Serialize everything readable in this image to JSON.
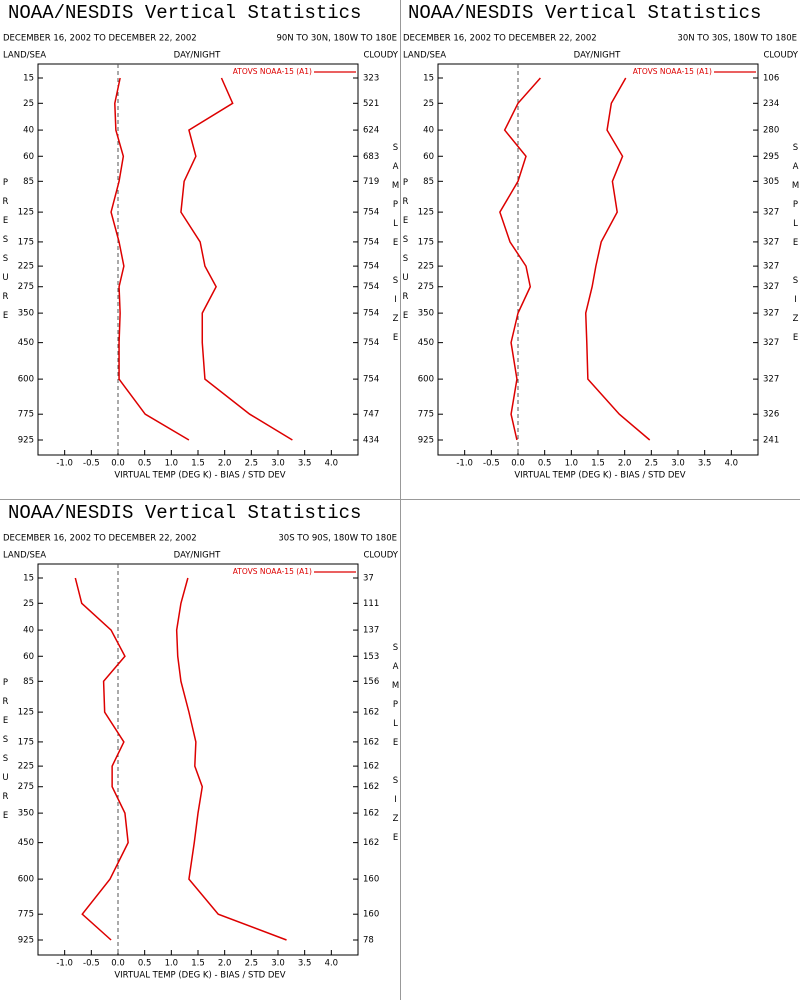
{
  "chart_data": [
    {
      "type": "line",
      "title": "NOAA/NESDIS Vertical Statistics",
      "subtitle": "DECEMBER 16, 2002 TO DECEMBER 22, 2002",
      "region": "90N TO 30N, 180W TO 180E",
      "land_sea": "LAND/SEA",
      "day_night": "DAY/NIGHT",
      "cloudy": "CLOUDY",
      "ylabel": "PRESSURE",
      "y2label": "SAMPLE SIZE",
      "xlabel": "VIRTUAL TEMP (DEG K) - BIAS / STD DEV",
      "levels": [
        15,
        25,
        40,
        60,
        85,
        125,
        175,
        225,
        275,
        350,
        450,
        600,
        775,
        925
      ],
      "sample_size": [
        323,
        521,
        624,
        683,
        719,
        754,
        754,
        754,
        754,
        754,
        754,
        754,
        747,
        434
      ],
      "series": [
        {
          "name": "ATOVS NOAA-15 (A1)",
          "color": "#dd0000",
          "bias": [
            0.04,
            -0.06,
            -0.04,
            0.1,
            0.02,
            -0.13,
            0.02,
            0.11,
            0.02,
            0.04,
            0.02,
            0.02,
            0.51,
            1.33
          ],
          "std_dev": [
            1.94,
            2.15,
            1.33,
            1.46,
            1.24,
            1.18,
            1.54,
            1.63,
            1.84,
            1.58,
            1.58,
            1.63,
            2.47,
            3.27
          ]
        }
      ],
      "xlim": [
        -1.5,
        4.5
      ],
      "xticks": [
        {
          "value": -1,
          "label": "-1.0"
        },
        -0.5,
        {
          "value": 0,
          "label": "0.0"
        },
        0.5,
        {
          "value": 1,
          "label": "1.0"
        },
        1.5,
        {
          "value": 2,
          "label": "2.0"
        },
        2.5,
        {
          "value": 3,
          "label": "3.0"
        },
        3.5,
        {
          "value": 4,
          "label": "4.0"
        }
      ]
    },
    {
      "type": "line",
      "title": "NOAA/NESDIS Vertical Statistics",
      "subtitle": "DECEMBER 16, 2002 TO DECEMBER 22, 2002",
      "region": "30N TO 30S, 180W TO 180E",
      "land_sea": "LAND/SEA",
      "day_night": "DAY/NIGHT",
      "cloudy": "CLOUDY",
      "ylabel": "PRESSURE",
      "y2label": "SAMPLE SIZE",
      "xlabel": "VIRTUAL TEMP (DEG K) - BIAS / STD DEV",
      "levels": [
        15,
        25,
        40,
        60,
        85,
        125,
        175,
        225,
        275,
        350,
        450,
        600,
        775,
        925
      ],
      "sample_size": [
        106,
        234,
        280,
        295,
        305,
        327,
        327,
        327,
        327,
        327,
        327,
        327,
        326,
        241
      ],
      "series": [
        {
          "name": "ATOVS NOAA-15 (A1)",
          "color": "#dd0000",
          "bias": [
            0.42,
            0.0,
            -0.25,
            0.15,
            0.0,
            -0.34,
            -0.15,
            0.15,
            0.23,
            0.0,
            -0.13,
            -0.02,
            -0.13,
            -0.02
          ],
          "std_dev": [
            2.02,
            1.75,
            1.67,
            1.96,
            1.77,
            1.86,
            1.56,
            1.46,
            1.39,
            1.27,
            1.29,
            1.31,
            1.9,
            2.47
          ]
        }
      ],
      "xlim": [
        -1.5,
        4.5
      ],
      "xticks": [
        {
          "value": -1,
          "label": "-1.0"
        },
        -0.5,
        {
          "value": 0,
          "label": "0.0"
        },
        0.5,
        {
          "value": 1,
          "label": "1.0"
        },
        1.5,
        {
          "value": 2,
          "label": "2.0"
        },
        2.5,
        {
          "value": 3,
          "label": "3.0"
        },
        3.5,
        {
          "value": 4,
          "label": "4.0"
        }
      ]
    },
    {
      "type": "line",
      "title": "NOAA/NESDIS Vertical Statistics",
      "subtitle": "DECEMBER 16, 2002 TO DECEMBER 22, 2002",
      "region": "30S TO 90S, 180W TO 180E",
      "land_sea": "LAND/SEA",
      "day_night": "DAY/NIGHT",
      "cloudy": "CLOUDY",
      "ylabel": "PRESSURE",
      "y2label": "SAMPLE SIZE",
      "xlabel": "VIRTUAL TEMP (DEG K) - BIAS / STD DEV",
      "levels": [
        15,
        25,
        40,
        60,
        85,
        125,
        175,
        225,
        275,
        350,
        450,
        600,
        775,
        925
      ],
      "sample_size": [
        37,
        111,
        137,
        153,
        156,
        162,
        162,
        162,
        162,
        162,
        162,
        160,
        160,
        78
      ],
      "series": [
        {
          "name": "ATOVS NOAA-15 (A1)",
          "color": "#dd0000",
          "bias": [
            -0.8,
            -0.68,
            -0.13,
            0.13,
            -0.27,
            -0.25,
            0.11,
            -0.11,
            -0.11,
            0.13,
            0.19,
            -0.15,
            -0.67,
            -0.13
          ],
          "std_dev": [
            1.31,
            1.18,
            1.1,
            1.12,
            1.18,
            1.33,
            1.46,
            1.44,
            1.58,
            1.5,
            1.43,
            1.33,
            1.88,
            3.16
          ]
        }
      ],
      "xlim": [
        -1.5,
        4.5
      ],
      "xticks": [
        {
          "value": -1,
          "label": "-1.0"
        },
        -0.5,
        {
          "value": 0,
          "label": "0.0"
        },
        0.5,
        {
          "value": 1,
          "label": "1.0"
        },
        1.5,
        {
          "value": 2,
          "label": "2.0"
        },
        2.5,
        {
          "value": 3,
          "label": "3.0"
        },
        3.5,
        {
          "value": 4,
          "label": "4.0"
        }
      ]
    }
  ]
}
